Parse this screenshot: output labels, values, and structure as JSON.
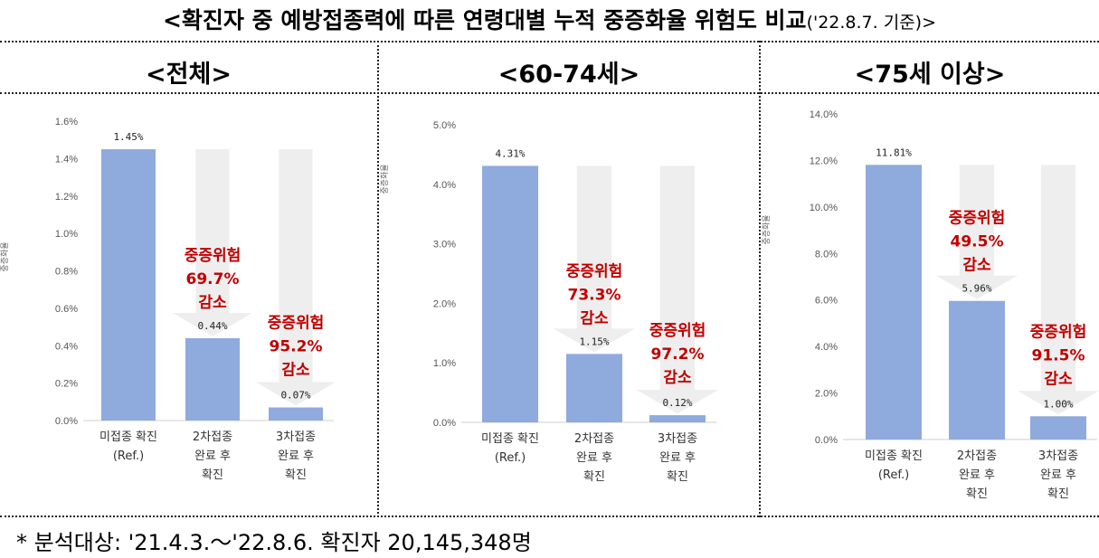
{
  "title": {
    "main": "<확진자 중 예방접종력에 따른 연령대별 누적 중증화율 위험도 비교",
    "date": "('22.8.7. 기준)>"
  },
  "footnote": "* 분석대상: '21.4.3.～'22.8.6. 확진자 20,145,348명",
  "colors": {
    "bar": "#8faadc",
    "arrow": "#eeeeee",
    "reduction_text": "#c00000"
  },
  "panels": [
    {
      "title": "<전체>"
    },
    {
      "title": "<60-74세>"
    },
    {
      "title": "<75세 이상>"
    }
  ],
  "chart_data": [
    {
      "type": "bar",
      "ylabel": "중증화율",
      "ylim": [
        0,
        1.6
      ],
      "yticks": [
        "0.0%",
        "0.2%",
        "0.4%",
        "0.6%",
        "0.8%",
        "1.0%",
        "1.2%",
        "1.4%",
        "1.6%"
      ],
      "categories": [
        [
          "미접종 확진",
          "(Ref.)"
        ],
        [
          "2차접종",
          "완료 후",
          "확진"
        ],
        [
          "3차접종",
          "완료 후",
          "확진"
        ]
      ],
      "values": [
        1.45,
        0.44,
        0.07
      ],
      "value_labels": [
        "1.45%",
        "0.44%",
        "0.07%"
      ],
      "reductions": [
        null,
        [
          "중증위험",
          "69.7%",
          "감소"
        ],
        [
          "중증위험",
          "95.2%",
          "감소"
        ]
      ]
    },
    {
      "type": "bar",
      "ylabel": "중증화율",
      "ylim": [
        0,
        5.0
      ],
      "yticks": [
        "0.0%",
        "1.0%",
        "2.0%",
        "3.0%",
        "4.0%",
        "5.0%"
      ],
      "categories": [
        [
          "미접종 확진",
          "(Ref.)"
        ],
        [
          "2차접종",
          "완료 후",
          "확진"
        ],
        [
          "3차접종",
          "완료 후",
          "확진"
        ]
      ],
      "values": [
        4.31,
        1.15,
        0.12
      ],
      "value_labels": [
        "4.31%",
        "1.15%",
        "0.12%"
      ],
      "reductions": [
        null,
        [
          "중증위험",
          "73.3%",
          "감소"
        ],
        [
          "중증위험",
          "97.2%",
          "감소"
        ]
      ]
    },
    {
      "type": "bar",
      "ylabel": "중증화율",
      "ylim": [
        0,
        14.0
      ],
      "yticks": [
        "0.0%",
        "2.0%",
        "4.0%",
        "6.0%",
        "8.0%",
        "10.0%",
        "12.0%",
        "14.0%"
      ],
      "categories": [
        [
          "미접종 확진",
          "(Ref.)"
        ],
        [
          "2차접종",
          "완료 후",
          "확진"
        ],
        [
          "3차접종",
          "완료 후",
          "확진"
        ]
      ],
      "values": [
        11.81,
        5.96,
        1.0
      ],
      "value_labels": [
        "11.81%",
        "5.96%",
        "1.00%"
      ],
      "reductions": [
        null,
        [
          "중증위험",
          "49.5%",
          "감소"
        ],
        [
          "중증위험",
          "91.5%",
          "감소"
        ]
      ]
    }
  ]
}
